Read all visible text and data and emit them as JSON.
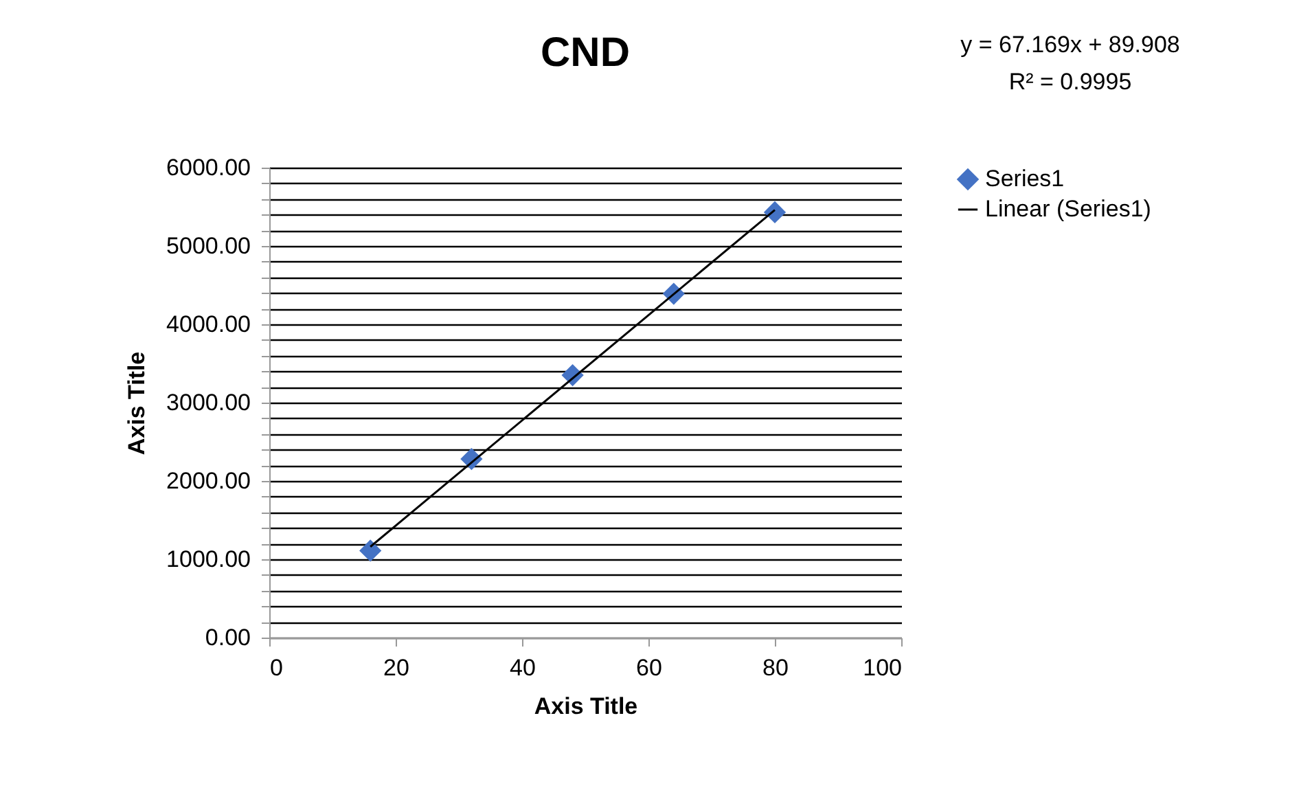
{
  "chart_data": {
    "type": "scatter",
    "title": "CND",
    "xlabel": "Axis Title",
    "ylabel": "Axis Title",
    "annotations": [
      "y = 67.169x + 89.908",
      "R² = 0.9995"
    ],
    "x": [
      16,
      32,
      48,
      64,
      80
    ],
    "series": [
      {
        "name": "Series1",
        "type": "scatter",
        "color": "#4472c4",
        "marker": "diamond",
        "values": [
          1110,
          2280,
          3350,
          4390,
          5430
        ]
      },
      {
        "name": "Linear (Series1)",
        "type": "line",
        "color": "#000000",
        "x": [
          16,
          80
        ],
        "values": [
          1160,
          5460
        ]
      }
    ],
    "xlim": [
      0,
      100
    ],
    "xticks": [
      0,
      20,
      40,
      60,
      80,
      100
    ],
    "ylim": [
      0,
      6000
    ],
    "yticks": [
      {
        "value": 0,
        "label": "0.00"
      },
      {
        "value": 200,
        "label": null
      },
      {
        "value": 400,
        "label": null
      },
      {
        "value": 600,
        "label": null
      },
      {
        "value": 800,
        "label": null
      },
      {
        "value": 1000,
        "label": "1000.00"
      },
      {
        "value": 1200,
        "label": null
      },
      {
        "value": 1400,
        "label": null
      },
      {
        "value": 1600,
        "label": null
      },
      {
        "value": 1800,
        "label": null
      },
      {
        "value": 2000,
        "label": "2000.00"
      },
      {
        "value": 2200,
        "label": null
      },
      {
        "value": 2400,
        "label": null
      },
      {
        "value": 2600,
        "label": null
      },
      {
        "value": 2800,
        "label": null
      },
      {
        "value": 3000,
        "label": "3000.00"
      },
      {
        "value": 3200,
        "label": null
      },
      {
        "value": 3400,
        "label": null
      },
      {
        "value": 3600,
        "label": null
      },
      {
        "value": 3800,
        "label": null
      },
      {
        "value": 4000,
        "label": "4000.00"
      },
      {
        "value": 4200,
        "label": null
      },
      {
        "value": 4400,
        "label": null
      },
      {
        "value": 4600,
        "label": null
      },
      {
        "value": 4800,
        "label": null
      },
      {
        "value": 5000,
        "label": "5000.00"
      },
      {
        "value": 5200,
        "label": null
      },
      {
        "value": 5400,
        "label": null
      },
      {
        "value": 5600,
        "label": null
      },
      {
        "value": 5800,
        "label": null
      },
      {
        "value": 6000,
        "label": "6000.00"
      }
    ],
    "grid": "y",
    "legend": "right",
    "line_style": "solid"
  }
}
